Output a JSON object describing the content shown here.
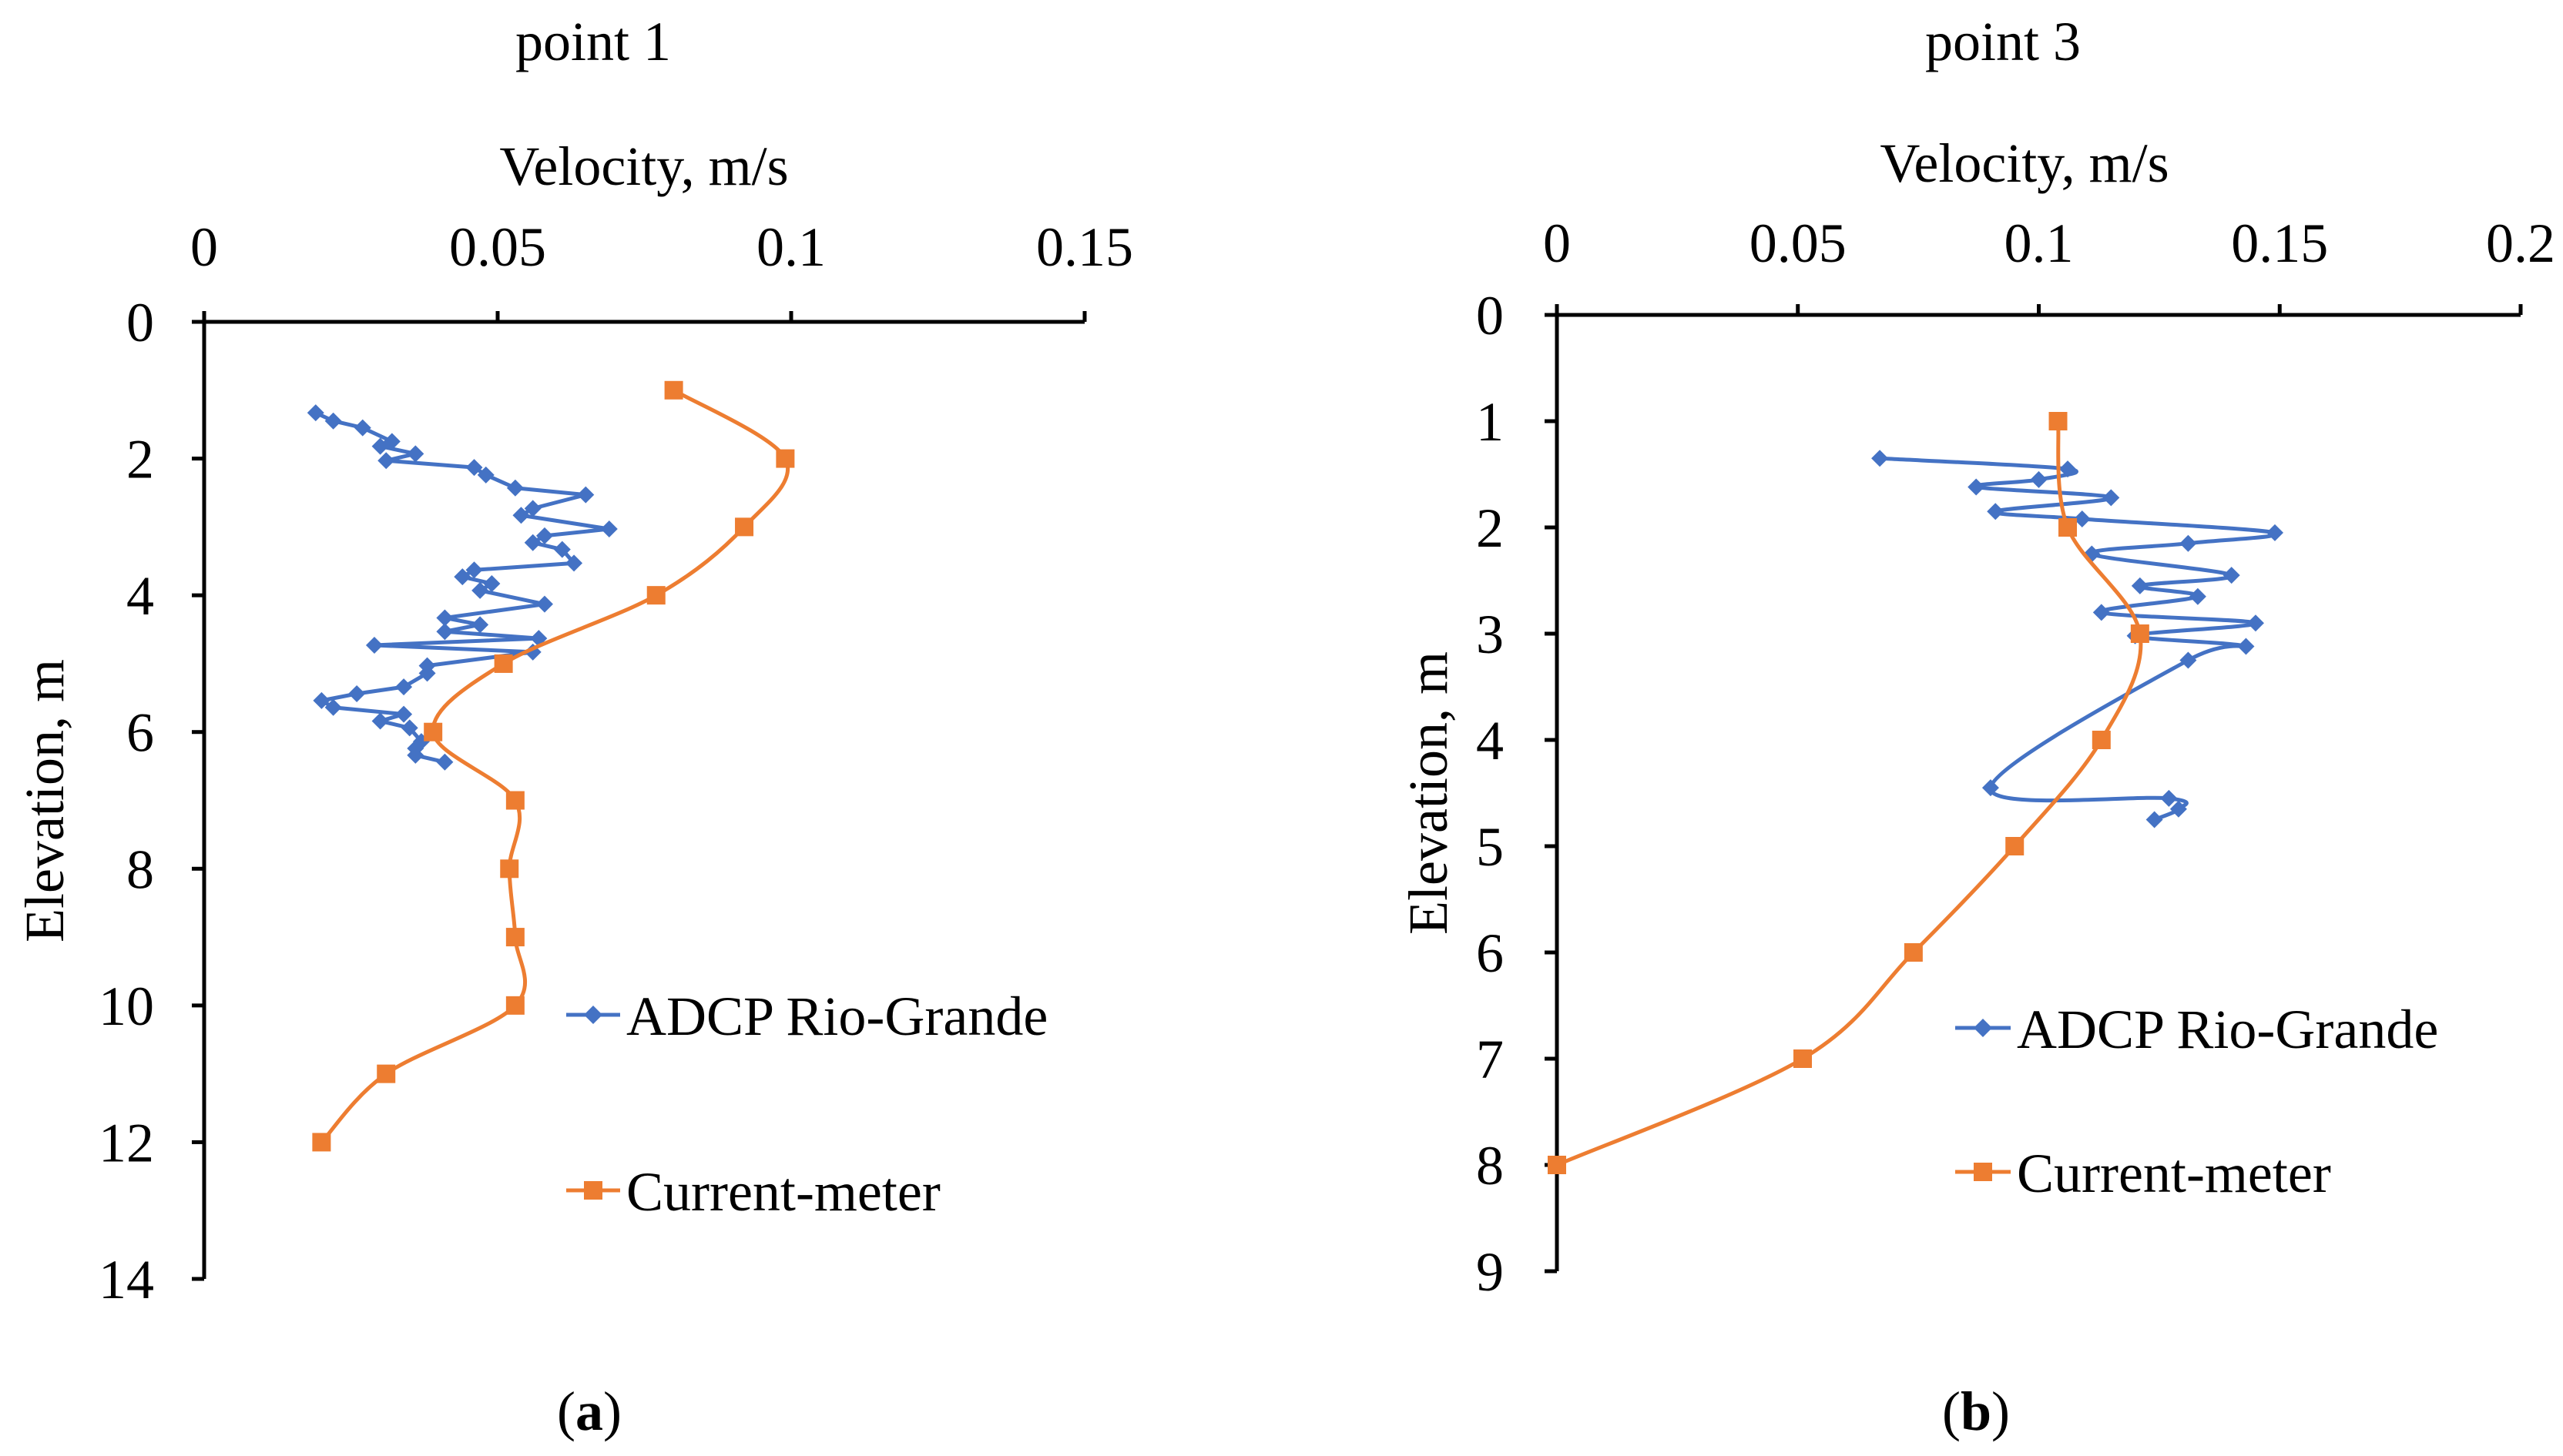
{
  "chart_data": [
    {
      "type": "line",
      "title": "point 1",
      "xlabel": "Velocity, m/s",
      "ylabel": "Elevation, m",
      "x_axis_position": "top",
      "y_axis_inverted": true,
      "xlim": [
        0,
        0.15
      ],
      "ylim": [
        0,
        14
      ],
      "xticks": [
        "0",
        "0.05",
        "0.1",
        "0.15"
      ],
      "yticks": [
        "0",
        "2",
        "4",
        "6",
        "8",
        "10",
        "12",
        "14"
      ],
      "grid": false,
      "legend_position": "bottom-right",
      "panel_label": {
        "open": "(",
        "letter": "a",
        "close": ")"
      },
      "series": [
        {
          "name": "ADCP Rio-Grande",
          "color": "#4472C4",
          "marker": "diamond",
          "smooth": false,
          "points": [
            [
              0.019,
              1.33
            ],
            [
              0.022,
              1.45
            ],
            [
              0.027,
              1.55
            ],
            [
              0.032,
              1.75
            ],
            [
              0.03,
              1.82
            ],
            [
              0.036,
              1.93
            ],
            [
              0.031,
              2.03
            ],
            [
              0.046,
              2.13
            ],
            [
              0.048,
              2.24
            ],
            [
              0.053,
              2.43
            ],
            [
              0.065,
              2.53
            ],
            [
              0.056,
              2.73
            ],
            [
              0.054,
              2.83
            ],
            [
              0.069,
              3.03
            ],
            [
              0.058,
              3.13
            ],
            [
              0.056,
              3.23
            ],
            [
              0.061,
              3.33
            ],
            [
              0.063,
              3.53
            ],
            [
              0.046,
              3.63
            ],
            [
              0.044,
              3.73
            ],
            [
              0.049,
              3.83
            ],
            [
              0.047,
              3.93
            ],
            [
              0.058,
              4.13
            ],
            [
              0.041,
              4.33
            ],
            [
              0.047,
              4.43
            ],
            [
              0.041,
              4.53
            ],
            [
              0.057,
              4.63
            ],
            [
              0.029,
              4.73
            ],
            [
              0.056,
              4.83
            ],
            [
              0.038,
              5.03
            ],
            [
              0.038,
              5.14
            ],
            [
              0.034,
              5.34
            ],
            [
              0.026,
              5.44
            ],
            [
              0.02,
              5.54
            ],
            [
              0.022,
              5.64
            ],
            [
              0.034,
              5.74
            ],
            [
              0.03,
              5.84
            ],
            [
              0.035,
              5.94
            ],
            [
              0.037,
              6.14
            ],
            [
              0.036,
              6.24
            ],
            [
              0.036,
              6.34
            ],
            [
              0.041,
              6.44
            ]
          ]
        },
        {
          "name": "Current-meter",
          "color": "#ED7D31",
          "marker": "square",
          "smooth": true,
          "points": [
            [
              0.08,
              1
            ],
            [
              0.099,
              2
            ],
            [
              0.092,
              3
            ],
            [
              0.077,
              4
            ],
            [
              0.051,
              5
            ],
            [
              0.039,
              6
            ],
            [
              0.053,
              7
            ],
            [
              0.052,
              8
            ],
            [
              0.053,
              9
            ],
            [
              0.053,
              10
            ],
            [
              0.031,
              11
            ],
            [
              0.02,
              12
            ]
          ]
        }
      ]
    },
    {
      "type": "line",
      "title": "point 3",
      "xlabel": "Velocity, m/s",
      "ylabel": "Elevation, m",
      "x_axis_position": "top",
      "y_axis_inverted": true,
      "xlim": [
        0,
        0.2
      ],
      "ylim": [
        0,
        9
      ],
      "xticks": [
        "0",
        "0.05",
        "0.1",
        "0.15",
        "0.2"
      ],
      "yticks": [
        "0",
        "1",
        "2",
        "3",
        "4",
        "5",
        "6",
        "7",
        "8",
        "9"
      ],
      "grid": false,
      "legend_position": "bottom-right",
      "panel_label": {
        "open": "(",
        "letter": "b",
        "close": ")"
      },
      "series": [
        {
          "name": "ADCP Rio-Grande",
          "color": "#4472C4",
          "marker": "diamond",
          "smooth": true,
          "points": [
            [
              0.067,
              1.35
            ],
            [
              0.106,
              1.45
            ],
            [
              0.1,
              1.55
            ],
            [
              0.087,
              1.62
            ],
            [
              0.115,
              1.72
            ],
            [
              0.091,
              1.85
            ],
            [
              0.109,
              1.92
            ],
            [
              0.149,
              2.05
            ],
            [
              0.131,
              2.15
            ],
            [
              0.111,
              2.25
            ],
            [
              0.14,
              2.45
            ],
            [
              0.121,
              2.55
            ],
            [
              0.133,
              2.65
            ],
            [
              0.113,
              2.8
            ],
            [
              0.145,
              2.9
            ],
            [
              0.12,
              3.02
            ],
            [
              0.143,
              3.12
            ],
            [
              0.131,
              3.25
            ],
            [
              0.09,
              4.45
            ],
            [
              0.127,
              4.55
            ],
            [
              0.129,
              4.65
            ],
            [
              0.124,
              4.75
            ]
          ]
        },
        {
          "name": "Current-meter",
          "color": "#ED7D31",
          "marker": "square",
          "smooth": true,
          "points": [
            [
              0.104,
              1
            ],
            [
              0.106,
              2
            ],
            [
              0.121,
              3
            ],
            [
              0.113,
              4
            ],
            [
              0.095,
              5
            ],
            [
              0.074,
              6
            ],
            [
              0.051,
              7
            ],
            [
              0.0,
              8
            ]
          ]
        }
      ]
    }
  ]
}
